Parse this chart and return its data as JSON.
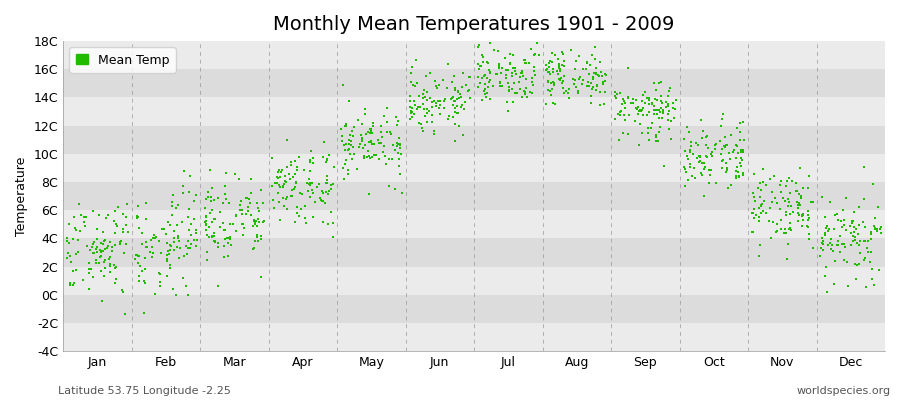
{
  "title": "Monthly Mean Temperatures 1901 - 2009",
  "ylabel": "Temperature",
  "xlabel": "",
  "footer_left": "Latitude 53.75 Longitude -2.25",
  "footer_right": "worldspecies.org",
  "legend_label": "Mean Temp",
  "ylim": [
    -4,
    18
  ],
  "yticks": [
    -4,
    -2,
    0,
    2,
    4,
    6,
    8,
    10,
    12,
    14,
    16,
    18
  ],
  "ytick_labels": [
    "-4C",
    "-2C",
    "0C",
    "2C",
    "4C",
    "6C",
    "8C",
    "10C",
    "12C",
    "14C",
    "16C",
    "18C"
  ],
  "months": [
    "Jan",
    "Feb",
    "Mar",
    "Apr",
    "May",
    "Jun",
    "Jul",
    "Aug",
    "Sep",
    "Oct",
    "Nov",
    "Dec"
  ],
  "mean_temps": [
    3.3,
    3.5,
    5.2,
    7.5,
    10.8,
    13.7,
    15.6,
    15.4,
    13.1,
    9.8,
    6.0,
    3.9
  ],
  "temp_std": [
    1.8,
    2.0,
    1.5,
    1.3,
    1.2,
    1.1,
    1.0,
    1.0,
    1.1,
    1.2,
    1.3,
    1.6
  ],
  "n_years": 109,
  "dot_color": "#22BB00",
  "bg_light": "#EBEBEB",
  "bg_dark": "#DCDCDC",
  "grid_line_color": "#888888",
  "title_fontsize": 14,
  "axis_fontsize": 9,
  "legend_fontsize": 9,
  "footer_fontsize": 8,
  "marker_size": 3
}
